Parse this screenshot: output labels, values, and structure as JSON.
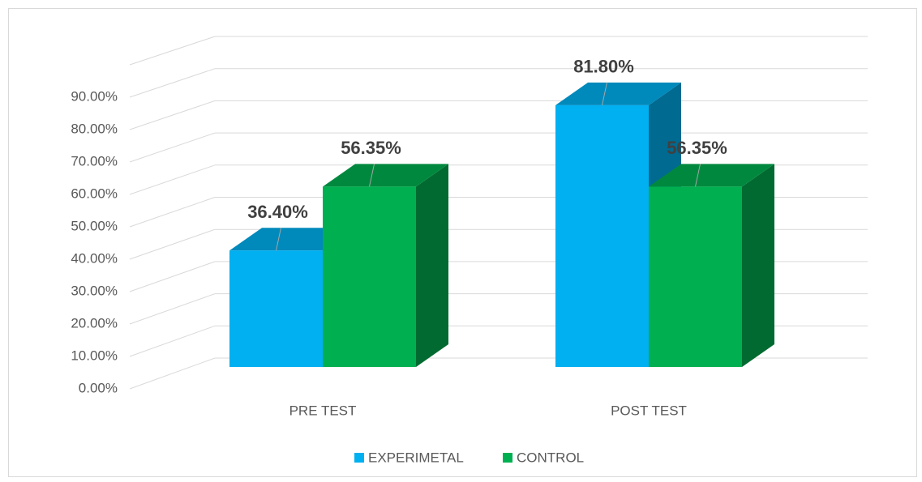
{
  "chart_data": {
    "type": "bar3d",
    "categories": [
      "PRE TEST",
      "POST TEST"
    ],
    "series": [
      {
        "name": "EXPERIMETAL",
        "color": "#00b0f0",
        "values": [
          36.4,
          81.8
        ],
        "value_labels": [
          "36.40%",
          "81.80%"
        ]
      },
      {
        "name": "CONTROL",
        "color": "#00b050",
        "values": [
          56.35,
          56.35
        ],
        "value_labels": [
          "56.35%",
          "56.35%"
        ]
      }
    ],
    "ylim": [
      0,
      100
    ],
    "yticks": [
      {
        "value": 0,
        "label": "0.00%"
      },
      {
        "value": 10,
        "label": "10.00%"
      },
      {
        "value": 20,
        "label": "20.00%"
      },
      {
        "value": 30,
        "label": "30.00%"
      },
      {
        "value": 40,
        "label": "40.00%"
      },
      {
        "value": 50,
        "label": "50.00%"
      },
      {
        "value": 60,
        "label": "60.00%"
      },
      {
        "value": 70,
        "label": "70.00%"
      },
      {
        "value": 80,
        "label": "80.00%"
      },
      {
        "value": 90,
        "label": "90.00%"
      }
    ],
    "grid": true,
    "legend": "bottom"
  }
}
